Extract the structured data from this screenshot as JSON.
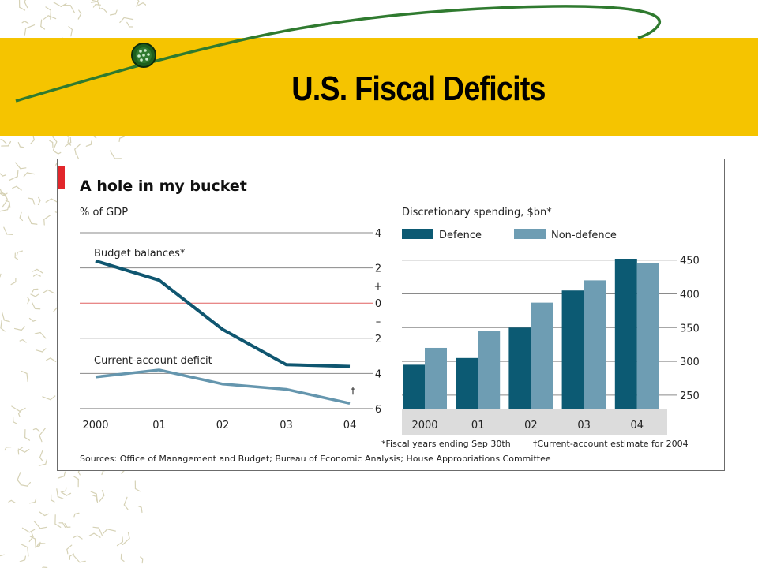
{
  "slide": {
    "title": "U.S. Fiscal Deficits"
  },
  "colors": {
    "band": "#f5c400",
    "defence": "#0c5a73",
    "non_defence": "#6e9db3",
    "budget_line": "#0f5670",
    "current_account_line": "#6596ae",
    "zero_line": "#e06060",
    "accent_red": "#e2262b"
  },
  "chart_data": [
    {
      "type": "line",
      "title": "A hole in my bucket",
      "ylabel": "% of GDP",
      "x": [
        "2000",
        "01",
        "02",
        "03",
        "04"
      ],
      "y_ticks": [
        "4",
        "2",
        "+",
        "0",
        "–",
        "2",
        "4",
        "6"
      ],
      "y_tick_values": [
        4,
        2,
        1,
        0,
        -1,
        -2,
        -4,
        -6
      ],
      "ylim": [
        -6,
        4
      ],
      "series": [
        {
          "name": "Budget balances*",
          "values": [
            2.4,
            1.3,
            -1.5,
            -3.5,
            -3.6
          ]
        },
        {
          "name": "Current-account deficit",
          "values": [
            -4.2,
            -3.8,
            -4.6,
            -4.9,
            -5.7
          ]
        }
      ],
      "annotation": "†",
      "grid": true
    },
    {
      "type": "bar",
      "title": "Discretionary spending, $bn*",
      "categories": [
        "2000",
        "01",
        "02",
        "03",
        "04"
      ],
      "series": [
        {
          "name": "Defence",
          "values": [
            295,
            305,
            350,
            405,
            452
          ]
        },
        {
          "name": "Non-defence",
          "values": [
            320,
            345,
            387,
            420,
            445
          ]
        }
      ],
      "y_ticks": [
        "450",
        "400",
        "350",
        "300",
        "250"
      ],
      "ylim": [
        230,
        452
      ],
      "legend": "top",
      "grid": true
    }
  ],
  "footnotes": {
    "fiscal": "*Fiscal years ending Sep 30th",
    "current_account": "†Current-account estimate for 2004",
    "sources": "Sources: Office of Management and Budget; Bureau of Economic Analysis; House Appropriations Committee"
  }
}
